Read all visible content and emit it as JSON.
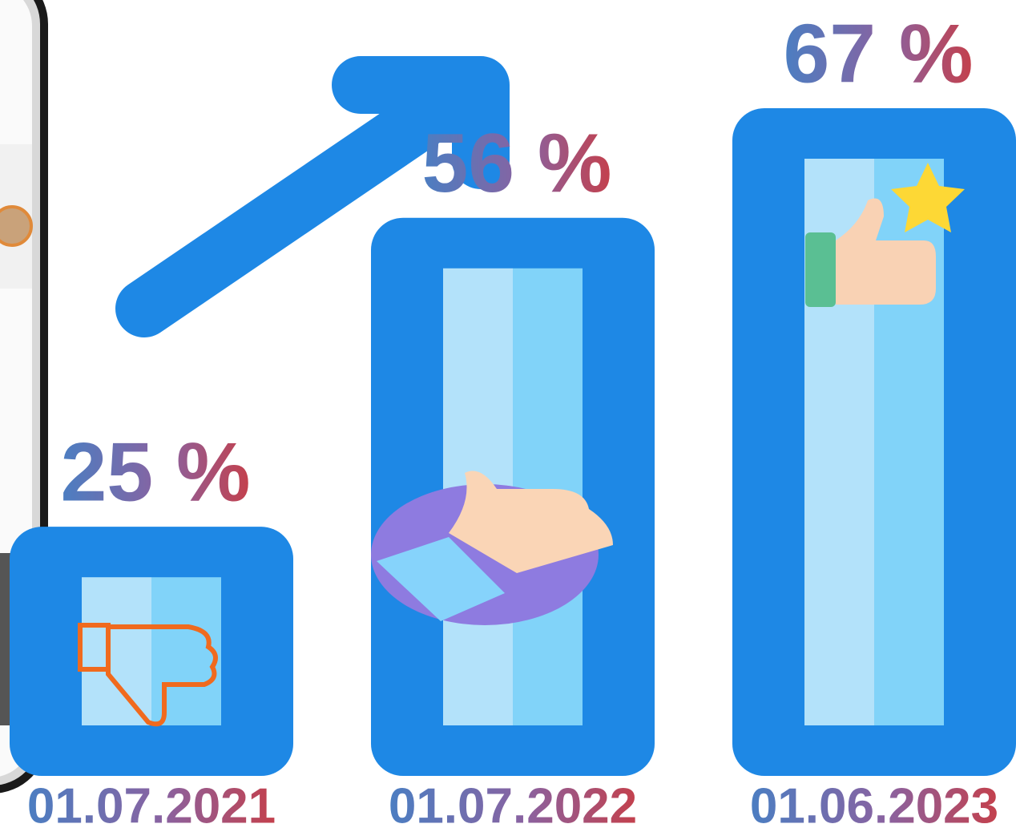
{
  "chart_data": {
    "type": "bar",
    "categories": [
      "01.07.2021",
      "01.07.2022",
      "01.06.2023"
    ],
    "values": [
      25,
      56,
      67
    ],
    "value_labels": [
      "25 %",
      "56 %",
      "67 %"
    ],
    "color": "#1e88e5"
  }
}
